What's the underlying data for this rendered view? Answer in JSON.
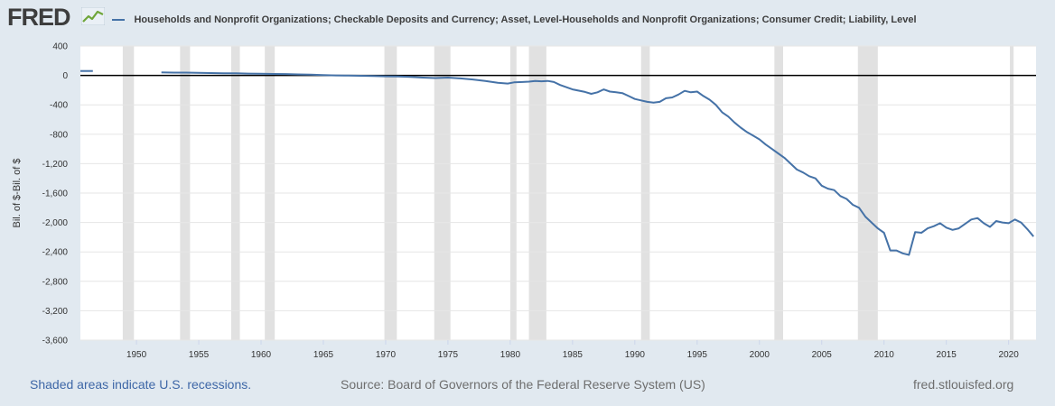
{
  "header": {
    "logo": "FRED",
    "logo_icon": "line-chart-icon",
    "legend_label": "Households and Nonprofit Organizations; Checkable Deposits and Currency; Asset, Level-Households and Nonprofit Organizations; Consumer Credit; Liability, Level"
  },
  "footer": {
    "recessions_note": "Shaded areas indicate U.S. recessions.",
    "source": "Source: Board of Governors of the Federal Reserve System (US)",
    "site": "fred.stlouisfed.org"
  },
  "colors": {
    "background": "#e1e9f0",
    "plot": "#ffffff",
    "series": "#4572a7",
    "recession": "#e1e1e1",
    "zero_line": "#000000",
    "link": "#3e67a7"
  },
  "chart_data": {
    "type": "line",
    "ylabel": "Bil. of $-Bil. of $",
    "xlim": [
      1945.5,
      2022.2
    ],
    "ylim": [
      -3600,
      400
    ],
    "yticks": [
      400,
      0,
      -400,
      -800,
      -1200,
      -1600,
      -2000,
      -2400,
      -2800,
      -3200,
      -3600
    ],
    "ytick_labels": [
      "400",
      "0",
      "-400",
      "-800",
      "-1,200",
      "-1,600",
      "-2,000",
      "-2,400",
      "-2,800",
      "-3,200",
      "-3,600"
    ],
    "xticks": [
      1950,
      1955,
      1960,
      1965,
      1970,
      1975,
      1980,
      1985,
      1990,
      1995,
      2000,
      2005,
      2010,
      2015,
      2020
    ],
    "xtick_labels": [
      "1950",
      "1955",
      "1960",
      "1965",
      "1970",
      "1975",
      "1980",
      "1985",
      "1990",
      "1995",
      "2000",
      "2005",
      "2010",
      "2015",
      "2020"
    ],
    "grid": "horizontal",
    "zero_line": true,
    "recessions": [
      [
        1948.9,
        1949.8
      ],
      [
        1953.5,
        1954.3
      ],
      [
        1957.6,
        1958.3
      ],
      [
        1960.3,
        1961.1
      ],
      [
        1969.9,
        1970.9
      ],
      [
        1973.9,
        1975.2
      ],
      [
        1980.0,
        1980.5
      ],
      [
        1981.5,
        1982.9
      ],
      [
        1990.5,
        1991.2
      ],
      [
        2001.2,
        2001.9
      ],
      [
        2007.9,
        2009.5
      ],
      [
        2020.1,
        2020.4
      ]
    ],
    "series": [
      {
        "name": "Households and Nonprofit Organizations; Checkable Deposits and Currency; Asset, Level-Households and Nonprofit Organizations; Consumer Credit; Liability, Level",
        "segments": [
          [
            [
              1945.5,
              60
            ],
            [
              1946.5,
              60
            ]
          ],
          [
            [
              1952.0,
              40
            ],
            [
              1953.0,
              38
            ],
            [
              1954.0,
              38
            ],
            [
              1955.0,
              35
            ],
            [
              1956.0,
              32
            ],
            [
              1957.0,
              30
            ],
            [
              1958.0,
              28
            ],
            [
              1959.0,
              25
            ],
            [
              1960.0,
              22
            ],
            [
              1961.0,
              20
            ],
            [
              1962.0,
              18
            ],
            [
              1963.0,
              14
            ],
            [
              1964.0,
              10
            ],
            [
              1965.0,
              5
            ],
            [
              1966.0,
              0
            ],
            [
              1967.0,
              -2
            ],
            [
              1968.0,
              -5
            ],
            [
              1969.0,
              -8
            ],
            [
              1970.0,
              -12
            ],
            [
              1971.0,
              -15
            ],
            [
              1972.0,
              -20
            ],
            [
              1973.0,
              -30
            ],
            [
              1974.0,
              -35
            ],
            [
              1975.0,
              -30
            ],
            [
              1976.0,
              -40
            ],
            [
              1977.0,
              -55
            ],
            [
              1978.0,
              -75
            ],
            [
              1979.0,
              -100
            ],
            [
              1979.8,
              -110
            ],
            [
              1980.3,
              -95
            ],
            [
              1981.0,
              -90
            ],
            [
              1981.5,
              -85
            ],
            [
              1982.0,
              -75
            ],
            [
              1982.5,
              -80
            ],
            [
              1983.0,
              -75
            ],
            [
              1983.5,
              -90
            ],
            [
              1984.0,
              -130
            ],
            [
              1985.0,
              -190
            ],
            [
              1986.0,
              -225
            ],
            [
              1986.5,
              -250
            ],
            [
              1987.0,
              -230
            ],
            [
              1987.5,
              -190
            ],
            [
              1988.0,
              -220
            ],
            [
              1988.5,
              -230
            ],
            [
              1989.0,
              -240
            ],
            [
              1989.5,
              -280
            ],
            [
              1990.0,
              -320
            ],
            [
              1990.5,
              -340
            ],
            [
              1991.0,
              -360
            ],
            [
              1991.5,
              -370
            ],
            [
              1992.0,
              -360
            ],
            [
              1992.5,
              -310
            ],
            [
              1993.0,
              -300
            ],
            [
              1993.5,
              -260
            ],
            [
              1994.0,
              -210
            ],
            [
              1994.5,
              -230
            ],
            [
              1995.0,
              -220
            ],
            [
              1995.5,
              -280
            ],
            [
              1996.0,
              -330
            ],
            [
              1996.5,
              -400
            ],
            [
              1997.0,
              -500
            ],
            [
              1997.5,
              -560
            ],
            [
              1998.0,
              -640
            ],
            [
              1998.5,
              -710
            ],
            [
              1999.0,
              -770
            ],
            [
              1999.5,
              -820
            ],
            [
              2000.0,
              -870
            ],
            [
              2000.5,
              -940
            ],
            [
              2001.0,
              -1000
            ],
            [
              2001.5,
              -1060
            ],
            [
              2002.0,
              -1120
            ],
            [
              2002.5,
              -1200
            ],
            [
              2003.0,
              -1280
            ],
            [
              2003.5,
              -1320
            ],
            [
              2004.0,
              -1370
            ],
            [
              2004.5,
              -1400
            ],
            [
              2005.0,
              -1500
            ],
            [
              2005.5,
              -1540
            ],
            [
              2006.0,
              -1560
            ],
            [
              2006.5,
              -1640
            ],
            [
              2007.0,
              -1680
            ],
            [
              2007.5,
              -1760
            ],
            [
              2008.0,
              -1800
            ],
            [
              2008.5,
              -1920
            ],
            [
              2009.0,
              -2000
            ],
            [
              2009.5,
              -2080
            ],
            [
              2010.0,
              -2140
            ],
            [
              2010.5,
              -2380
            ],
            [
              2011.0,
              -2380
            ],
            [
              2011.5,
              -2420
            ],
            [
              2012.0,
              -2440
            ],
            [
              2012.5,
              -2130
            ],
            [
              2013.0,
              -2140
            ],
            [
              2013.5,
              -2080
            ],
            [
              2014.0,
              -2050
            ],
            [
              2014.5,
              -2010
            ],
            [
              2015.0,
              -2070
            ],
            [
              2015.5,
              -2100
            ],
            [
              2016.0,
              -2080
            ],
            [
              2016.5,
              -2020
            ],
            [
              2017.0,
              -1960
            ],
            [
              2017.5,
              -1940
            ],
            [
              2018.0,
              -2010
            ],
            [
              2018.5,
              -2060
            ],
            [
              2019.0,
              -1980
            ],
            [
              2019.5,
              -2000
            ],
            [
              2020.0,
              -2010
            ],
            [
              2020.5,
              -1960
            ],
            [
              2021.0,
              -2000
            ],
            [
              2021.5,
              -2090
            ],
            [
              2022.0,
              -2190
            ]
          ]
        ]
      }
    ]
  }
}
